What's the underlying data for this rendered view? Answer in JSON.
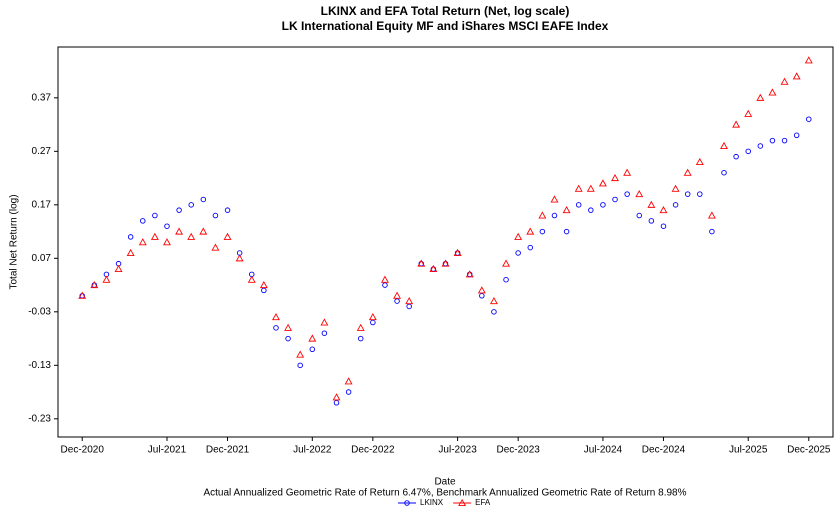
{
  "chart_data": {
    "type": "scatter",
    "title": "LKINX and EFA Total Return (Net, log scale)",
    "subtitle": "LK International Equity MF and iShares MSCI EAFE Index",
    "xlabel": "Date",
    "ylabel": "Total Net Return (log)",
    "caption": "Actual Annualized Geometric Rate of Return 6.47%, Benchmark Annualized Geometric Rate of Return 8.98%",
    "x": [
      "2020-12",
      "2021-01",
      "2021-02",
      "2021-03",
      "2021-04",
      "2021-05",
      "2021-06",
      "2021-07",
      "2021-08",
      "2021-09",
      "2021-10",
      "2021-11",
      "2021-12",
      "2022-01",
      "2022-02",
      "2022-03",
      "2022-04",
      "2022-05",
      "2022-06",
      "2022-07",
      "2022-08",
      "2022-09",
      "2022-10",
      "2022-11",
      "2022-12",
      "2023-01",
      "2023-02",
      "2023-03",
      "2023-04",
      "2023-05",
      "2023-06",
      "2023-07",
      "2023-08",
      "2023-09",
      "2023-10",
      "2023-11",
      "2023-12",
      "2024-01",
      "2024-02",
      "2024-03",
      "2024-04",
      "2024-05",
      "2024-06",
      "2024-07",
      "2024-08",
      "2024-09",
      "2024-10",
      "2024-11",
      "2024-12",
      "2025-01",
      "2025-02",
      "2025-03",
      "2025-04",
      "2025-05",
      "2025-06",
      "2025-07",
      "2025-08",
      "2025-09",
      "2025-10",
      "2025-11",
      "2025-12"
    ],
    "series": [
      {
        "name": "LKINX",
        "color": "#0000ff",
        "marker": "circle",
        "values": [
          0.0,
          0.02,
          0.04,
          0.06,
          0.11,
          0.14,
          0.15,
          0.13,
          0.16,
          0.17,
          0.18,
          0.15,
          0.16,
          0.08,
          0.04,
          0.01,
          -0.06,
          -0.08,
          -0.13,
          -0.1,
          -0.07,
          -0.2,
          -0.18,
          -0.08,
          -0.05,
          0.02,
          -0.01,
          -0.02,
          0.06,
          0.05,
          0.06,
          0.08,
          0.04,
          0.0,
          -0.03,
          0.03,
          0.08,
          0.09,
          0.12,
          0.15,
          0.12,
          0.17,
          0.16,
          0.17,
          0.18,
          0.19,
          0.15,
          0.14,
          0.13,
          0.17,
          0.19,
          0.19,
          0.12,
          0.23,
          0.26,
          0.27,
          0.28,
          0.29,
          0.29,
          0.3,
          0.33
        ]
      },
      {
        "name": "EFA",
        "color": "#ff0000",
        "marker": "triangle",
        "values": [
          0.0,
          0.02,
          0.03,
          0.05,
          0.08,
          0.1,
          0.11,
          0.1,
          0.12,
          0.11,
          0.12,
          0.09,
          0.11,
          0.07,
          0.03,
          0.02,
          -0.04,
          -0.06,
          -0.11,
          -0.08,
          -0.05,
          -0.19,
          -0.16,
          -0.06,
          -0.04,
          0.03,
          0.0,
          -0.01,
          0.06,
          0.05,
          0.06,
          0.08,
          0.04,
          0.01,
          -0.01,
          0.06,
          0.11,
          0.12,
          0.15,
          0.18,
          0.16,
          0.2,
          0.2,
          0.21,
          0.22,
          0.23,
          0.19,
          0.17,
          0.16,
          0.2,
          0.23,
          0.25,
          0.15,
          0.28,
          0.32,
          0.34,
          0.37,
          0.38,
          0.4,
          0.41,
          0.44
        ]
      }
    ],
    "xlim": [
      "2020-10",
      "2026-02"
    ],
    "xticks": [
      {
        "value": "2020-12",
        "label": "Dec-2020"
      },
      {
        "value": "2021-07",
        "label": "Jul-2021"
      },
      {
        "value": "2021-12",
        "label": "Dec-2021"
      },
      {
        "value": "2022-07",
        "label": "Jul-2022"
      },
      {
        "value": "2022-12",
        "label": "Dec-2022"
      },
      {
        "value": "2023-07",
        "label": "Jul-2023"
      },
      {
        "value": "2023-12",
        "label": "Dec-2023"
      },
      {
        "value": "2024-07",
        "label": "Jul-2024"
      },
      {
        "value": "2024-12",
        "label": "Dec-2024"
      },
      {
        "value": "2025-07",
        "label": "Jul-2025"
      },
      {
        "value": "2025-12",
        "label": "Dec-2025"
      }
    ],
    "ylim": [
      -0.264,
      0.465
    ],
    "yticks": [
      -0.23,
      -0.13,
      -0.03,
      0.07,
      0.17,
      0.27,
      0.37
    ],
    "legend": "bottom"
  }
}
